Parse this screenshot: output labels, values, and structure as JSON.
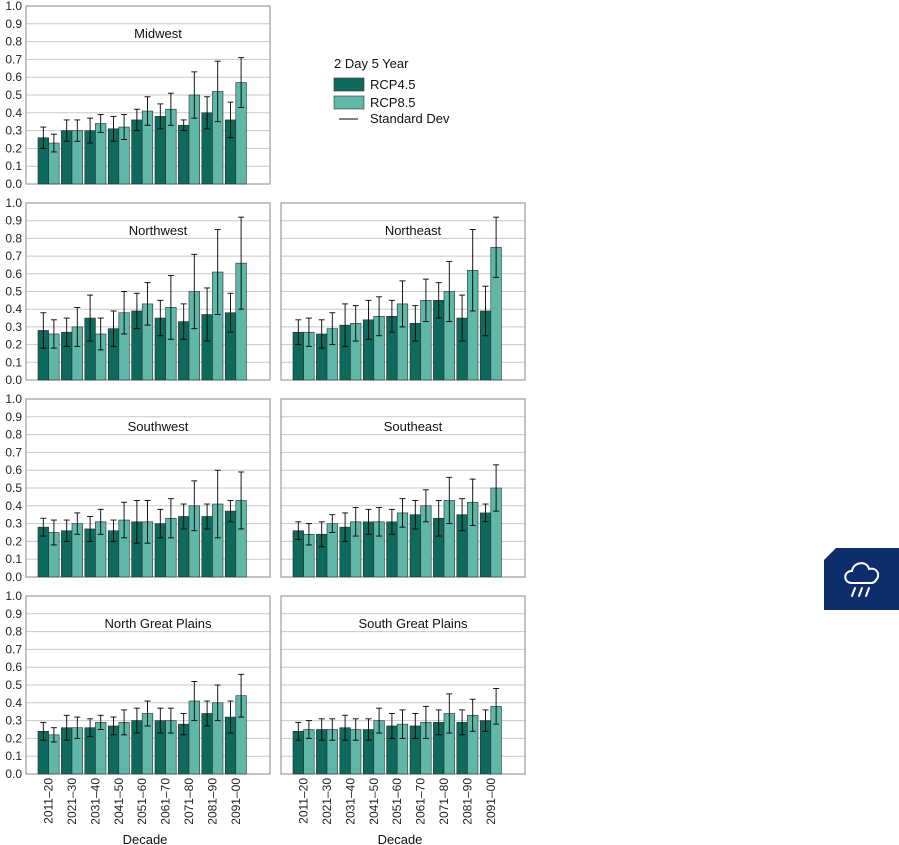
{
  "legend": {
    "title": "2 Day 5 Year",
    "items": [
      {
        "label": "RCP4.5",
        "color": "#0f6a5e"
      },
      {
        "label": "RCP8.5",
        "color": "#5fb7a8"
      },
      {
        "label": "Standard Dev",
        "color": "#000000"
      }
    ]
  },
  "badge": {
    "icon": "rain-cloud-icon",
    "color": "#0d2d6b"
  },
  "chart_data": [
    {
      "type": "bar",
      "title": "Midwest",
      "categories": [
        "2011–20",
        "2021–30",
        "2031–40",
        "2041–50",
        "2051–60",
        "2061–70",
        "2071–80",
        "2081–90",
        "2091–00"
      ],
      "ylim": [
        0,
        1.0
      ],
      "yticks": [
        "0.0",
        "0.1",
        "0.2",
        "0.3",
        "0.4",
        "0.5",
        "0.6",
        "0.7",
        "0.8",
        "0.9",
        "1.0"
      ],
      "xlabel": "",
      "grid": true,
      "series": [
        {
          "name": "RCP4.5",
          "values": [
            0.26,
            0.3,
            0.3,
            0.31,
            0.36,
            0.38,
            0.33,
            0.4,
            0.36
          ],
          "std": [
            0.06,
            0.06,
            0.07,
            0.07,
            0.06,
            0.07,
            0.03,
            0.09,
            0.1
          ]
        },
        {
          "name": "RCP8.5",
          "values": [
            0.23,
            0.3,
            0.34,
            0.32,
            0.41,
            0.42,
            0.5,
            0.52,
            0.57
          ],
          "std": [
            0.05,
            0.06,
            0.05,
            0.07,
            0.08,
            0.09,
            0.13,
            0.17,
            0.14
          ]
        }
      ]
    },
    {
      "type": "bar",
      "title": "Northwest",
      "categories": [
        "2011–20",
        "2021–30",
        "2031–40",
        "2041–50",
        "2051–60",
        "2061–70",
        "2071–80",
        "2081–90",
        "2091–00"
      ],
      "ylim": [
        0,
        1.0
      ],
      "yticks": [
        "0.0",
        "0.1",
        "0.2",
        "0.3",
        "0.4",
        "0.5",
        "0.6",
        "0.7",
        "0.8",
        "0.9",
        "1.0"
      ],
      "xlabel": "",
      "grid": true,
      "series": [
        {
          "name": "RCP4.5",
          "values": [
            0.28,
            0.27,
            0.35,
            0.29,
            0.39,
            0.35,
            0.33,
            0.37,
            0.38
          ],
          "std": [
            0.1,
            0.08,
            0.13,
            0.1,
            0.1,
            0.1,
            0.1,
            0.15,
            0.11
          ]
        },
        {
          "name": "RCP8.5",
          "values": [
            0.26,
            0.3,
            0.26,
            0.38,
            0.43,
            0.41,
            0.5,
            0.61,
            0.66
          ],
          "std": [
            0.08,
            0.11,
            0.09,
            0.12,
            0.12,
            0.18,
            0.21,
            0.24,
            0.26
          ]
        }
      ]
    },
    {
      "type": "bar",
      "title": "Northeast",
      "categories": [
        "2011–20",
        "2021–30",
        "2031–40",
        "2041–50",
        "2051–60",
        "2061–70",
        "2071–80",
        "2081–90",
        "2091–00"
      ],
      "ylim": [
        0,
        1.0
      ],
      "yticks": [
        "0.0",
        "0.1",
        "0.2",
        "0.3",
        "0.4",
        "0.5",
        "0.6",
        "0.7",
        "0.8",
        "0.9",
        "1.0"
      ],
      "xlabel": "",
      "grid": true,
      "series": [
        {
          "name": "RCP4.5",
          "values": [
            0.27,
            0.26,
            0.31,
            0.34,
            0.36,
            0.32,
            0.45,
            0.35,
            0.39
          ],
          "std": [
            0.07,
            0.08,
            0.12,
            0.11,
            0.09,
            0.1,
            0.1,
            0.13,
            0.14
          ]
        },
        {
          "name": "RCP8.5",
          "values": [
            0.27,
            0.29,
            0.32,
            0.36,
            0.43,
            0.45,
            0.5,
            0.62,
            0.75
          ],
          "std": [
            0.08,
            0.09,
            0.1,
            0.11,
            0.13,
            0.12,
            0.17,
            0.23,
            0.17
          ]
        }
      ]
    },
    {
      "type": "bar",
      "title": "Southwest",
      "categories": [
        "2011–20",
        "2021–30",
        "2031–40",
        "2041–50",
        "2051–60",
        "2061–70",
        "2071–80",
        "2081–90",
        "2091–00"
      ],
      "ylim": [
        0,
        1.0
      ],
      "yticks": [
        "0.0",
        "0.1",
        "0.2",
        "0.3",
        "0.4",
        "0.5",
        "0.6",
        "0.7",
        "0.8",
        "0.9",
        "1.0"
      ],
      "xlabel": "",
      "grid": true,
      "series": [
        {
          "name": "RCP4.5",
          "values": [
            0.28,
            0.26,
            0.27,
            0.26,
            0.31,
            0.3,
            0.34,
            0.34,
            0.37
          ],
          "std": [
            0.05,
            0.06,
            0.07,
            0.06,
            0.12,
            0.08,
            0.07,
            0.07,
            0.06
          ]
        },
        {
          "name": "RCP8.5",
          "values": [
            0.25,
            0.3,
            0.31,
            0.32,
            0.31,
            0.33,
            0.4,
            0.41,
            0.43
          ],
          "std": [
            0.07,
            0.06,
            0.07,
            0.1,
            0.12,
            0.11,
            0.14,
            0.19,
            0.16
          ]
        }
      ]
    },
    {
      "type": "bar",
      "title": "Southeast",
      "categories": [
        "2011–20",
        "2021–30",
        "2031–40",
        "2041–50",
        "2051–60",
        "2061–70",
        "2071–80",
        "2081–90",
        "2091–00"
      ],
      "ylim": [
        0,
        1.0
      ],
      "yticks": [
        "0.0",
        "0.1",
        "0.2",
        "0.3",
        "0.4",
        "0.5",
        "0.6",
        "0.7",
        "0.8",
        "0.9",
        "1.0"
      ],
      "xlabel": "",
      "grid": true,
      "series": [
        {
          "name": "RCP4.5",
          "values": [
            0.26,
            0.24,
            0.28,
            0.31,
            0.31,
            0.35,
            0.33,
            0.35,
            0.36
          ],
          "std": [
            0.05,
            0.07,
            0.08,
            0.07,
            0.07,
            0.08,
            0.1,
            0.09,
            0.05
          ]
        },
        {
          "name": "RCP8.5",
          "values": [
            0.24,
            0.3,
            0.31,
            0.31,
            0.36,
            0.4,
            0.43,
            0.42,
            0.5
          ],
          "std": [
            0.06,
            0.05,
            0.08,
            0.08,
            0.08,
            0.09,
            0.13,
            0.13,
            0.13
          ]
        }
      ]
    },
    {
      "type": "bar",
      "title": "North Great Plains",
      "categories": [
        "2011–20",
        "2021–30",
        "2031–40",
        "2041–50",
        "2051–60",
        "2061–70",
        "2071–80",
        "2081–90",
        "2091–00"
      ],
      "ylim": [
        0,
        1.0
      ],
      "yticks": [
        "0.0",
        "0.1",
        "0.2",
        "0.3",
        "0.4",
        "0.5",
        "0.6",
        "0.7",
        "0.8",
        "0.9",
        "1.0"
      ],
      "xlabel": "Decade",
      "grid": true,
      "series": [
        {
          "name": "RCP4.5",
          "values": [
            0.24,
            0.26,
            0.26,
            0.27,
            0.3,
            0.3,
            0.28,
            0.34,
            0.32
          ],
          "std": [
            0.05,
            0.07,
            0.05,
            0.05,
            0.07,
            0.07,
            0.06,
            0.07,
            0.09
          ]
        },
        {
          "name": "RCP8.5",
          "values": [
            0.22,
            0.26,
            0.29,
            0.29,
            0.34,
            0.3,
            0.41,
            0.4,
            0.44
          ],
          "std": [
            0.04,
            0.06,
            0.04,
            0.07,
            0.07,
            0.07,
            0.11,
            0.1,
            0.12
          ]
        }
      ]
    },
    {
      "type": "bar",
      "title": "South Great Plains",
      "categories": [
        "2011–20",
        "2021–30",
        "2031–40",
        "2041–50",
        "2051–60",
        "2061–70",
        "2071–80",
        "2081–90",
        "2091–00"
      ],
      "ylim": [
        0,
        1.0
      ],
      "yticks": [
        "0.0",
        "0.1",
        "0.2",
        "0.3",
        "0.4",
        "0.5",
        "0.6",
        "0.7",
        "0.8",
        "0.9",
        "1.0"
      ],
      "xlabel": "Decade",
      "grid": true,
      "series": [
        {
          "name": "RCP4.5",
          "values": [
            0.24,
            0.25,
            0.26,
            0.25,
            0.27,
            0.27,
            0.29,
            0.29,
            0.3
          ],
          "std": [
            0.05,
            0.06,
            0.07,
            0.06,
            0.07,
            0.07,
            0.07,
            0.07,
            0.06
          ]
        },
        {
          "name": "RCP8.5",
          "values": [
            0.25,
            0.25,
            0.25,
            0.3,
            0.28,
            0.29,
            0.34,
            0.33,
            0.38
          ],
          "std": [
            0.05,
            0.06,
            0.06,
            0.07,
            0.08,
            0.09,
            0.11,
            0.09,
            0.1
          ]
        }
      ]
    }
  ]
}
